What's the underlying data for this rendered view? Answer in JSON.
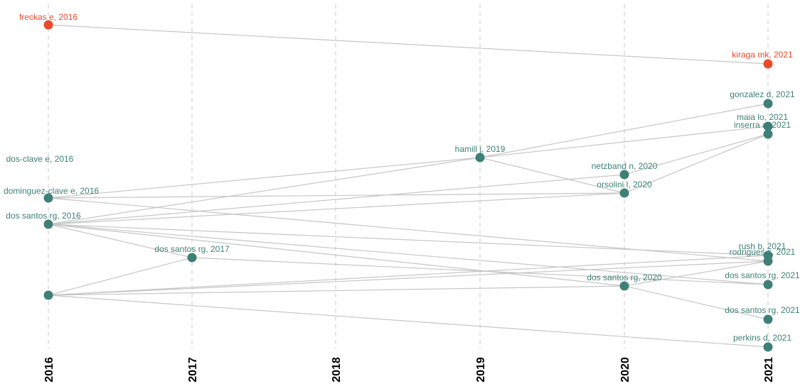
{
  "chart_data": {
    "type": "historiograph",
    "title": "",
    "xlabel": "",
    "ylabel": "",
    "years": [
      "2016",
      "2017",
      "2018",
      "2019",
      "2020",
      "2021"
    ],
    "grid": true,
    "colors": {
      "default": "#3e8077",
      "highlight": "#ea4b2d",
      "edge": "#c6c6c6",
      "grid": "#c8c8c8"
    },
    "nodes": [
      {
        "id": "freckas2016",
        "label": "freckas e, 2016",
        "year": 2016,
        "row": 0,
        "highlight": true
      },
      {
        "id": "kiraga2021",
        "label": "kiraga mk, 2021",
        "year": 2021,
        "row": 1,
        "highlight": true
      },
      {
        "id": "gonzalez2021",
        "label": "gonzalez d, 2021",
        "year": 2021,
        "row": 2
      },
      {
        "id": "maia2021",
        "label": "maia lo, 2021",
        "year": 2021,
        "row": 3
      },
      {
        "id": "inserra2021",
        "label": "inserra a, 2021",
        "year": 2021,
        "row": 4
      },
      {
        "id": "dosclave2016",
        "label": "dos-clave e, 2016",
        "year": 2016,
        "row": 5,
        "noMarker": true
      },
      {
        "id": "hamill2019",
        "label": "hamill j, 2019",
        "year": 2019,
        "row": 6
      },
      {
        "id": "netzband2020",
        "label": "netzband n, 2020",
        "year": 2020,
        "row": 7
      },
      {
        "id": "dominguez2016",
        "label": "dominguez-clave e, 2016",
        "year": 2016,
        "row": 8
      },
      {
        "id": "orsolini2020",
        "label": "orsolini l, 2020",
        "year": 2020,
        "row": 9
      },
      {
        "id": "dossantos2016",
        "label": "dos santos rg, 2016",
        "year": 2016,
        "row": 10
      },
      {
        "id": "rush2021",
        "label": "rush b, 2021",
        "year": 2021,
        "row": 11
      },
      {
        "id": "rodrigues2021",
        "label": "rodrigues s, 2021",
        "year": 2021,
        "row": 12
      },
      {
        "id": "dossantos2017",
        "label": "dos santos rg, 2017",
        "year": 2017,
        "row": 13
      },
      {
        "id": "dossantos2020",
        "label": "dos santos rg, 2020",
        "year": 2020,
        "row": 14
      },
      {
        "id": "dossantos2021a",
        "label": "dos santos rg, 2021",
        "year": 2021,
        "row": 15
      },
      {
        "id": "unlabeled2016",
        "label": "",
        "year": 2016,
        "row": 16
      },
      {
        "id": "dossantos2021b",
        "label": "dos santos rg, 2021",
        "year": 2021,
        "row": 17
      },
      {
        "id": "perkins2021",
        "label": "perkins d, 2021",
        "year": 2021,
        "row": 18
      }
    ],
    "edges": [
      [
        "freckas2016",
        "kiraga2021"
      ],
      [
        "dominguez2016",
        "hamill2019"
      ],
      [
        "dominguez2016",
        "orsolini2020"
      ],
      [
        "dominguez2016",
        "rodrigues2021"
      ],
      [
        "dossantos2016",
        "hamill2019"
      ],
      [
        "dossantos2016",
        "netzband2020"
      ],
      [
        "dossantos2016",
        "orsolini2020"
      ],
      [
        "dossantos2016",
        "dossantos2017"
      ],
      [
        "dossantos2016",
        "rush2021"
      ],
      [
        "dossantos2016",
        "dossantos2020"
      ],
      [
        "dossantos2016",
        "dossantos2021a"
      ],
      [
        "hamill2019",
        "gonzalez2021"
      ],
      [
        "hamill2019",
        "maia2021"
      ],
      [
        "hamill2019",
        "orsolini2020"
      ],
      [
        "netzband2020",
        "inserra2021"
      ],
      [
        "orsolini2020",
        "inserra2021"
      ],
      [
        "dossantos2017",
        "dossantos2021a"
      ],
      [
        "unlabeled2016",
        "dossantos2017"
      ],
      [
        "unlabeled2016",
        "rush2021"
      ],
      [
        "unlabeled2016",
        "rodrigues2021"
      ],
      [
        "unlabeled2016",
        "dossantos2020"
      ],
      [
        "unlabeled2016",
        "perkins2021"
      ],
      [
        "dossantos2020",
        "dossantos2021b"
      ],
      [
        "dossantos2020",
        "rodrigues2021"
      ]
    ]
  }
}
